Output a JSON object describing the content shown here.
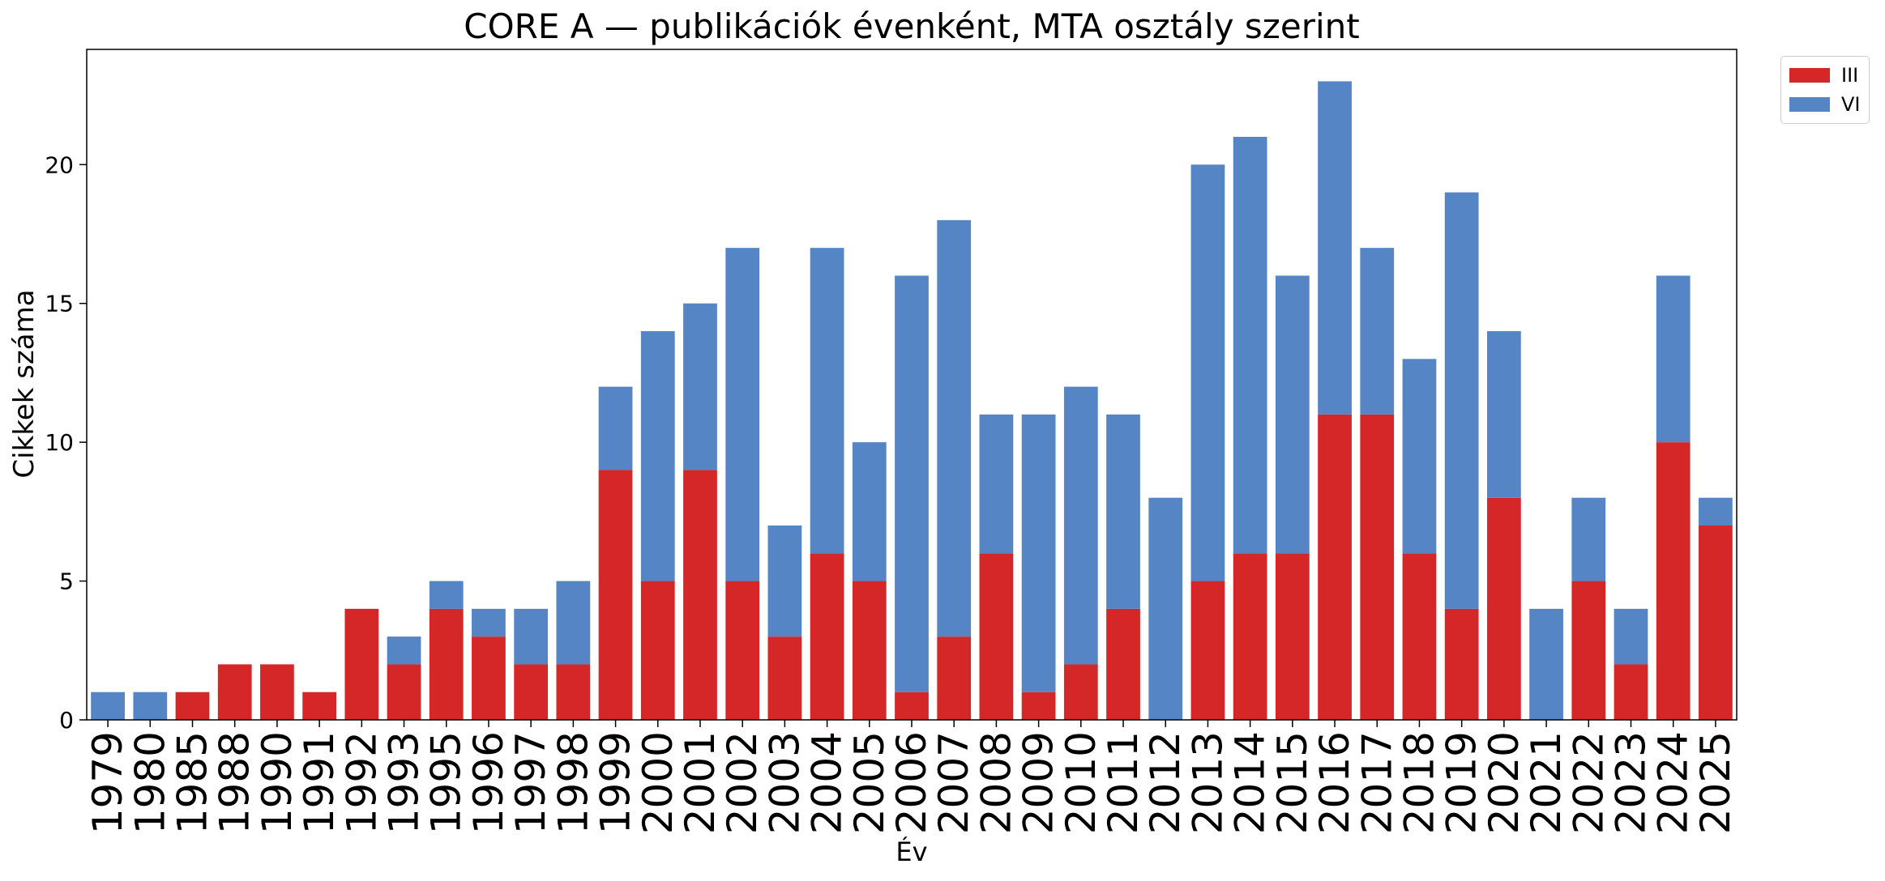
{
  "chart_data": {
    "type": "bar",
    "stacked": true,
    "title": "CORE A — publikációk évenként, MTA osztály szerint",
    "xlabel": "Év",
    "ylabel": "Cikkek száma",
    "categories": [
      "1979",
      "1980",
      "1985",
      "1988",
      "1990",
      "1991",
      "1992",
      "1993",
      "1995",
      "1996",
      "1997",
      "1998",
      "1999",
      "2000",
      "2001",
      "2002",
      "2003",
      "2004",
      "2005",
      "2006",
      "2007",
      "2008",
      "2009",
      "2010",
      "2011",
      "2012",
      "2013",
      "2014",
      "2015",
      "2016",
      "2017",
      "2018",
      "2019",
      "2020",
      "2021",
      "2022",
      "2023",
      "2024",
      "2025"
    ],
    "series": [
      {
        "name": "III",
        "color": "#d62728",
        "values": [
          0,
          0,
          1,
          2,
          2,
          1,
          4,
          2,
          4,
          3,
          2,
          2,
          9,
          5,
          9,
          5,
          3,
          6,
          5,
          1,
          3,
          6,
          1,
          2,
          4,
          0,
          5,
          6,
          6,
          11,
          11,
          6,
          4,
          8,
          0,
          5,
          2,
          10,
          7
        ]
      },
      {
        "name": "VI",
        "color": "#5585c4",
        "values": [
          1,
          1,
          0,
          0,
          0,
          0,
          0,
          1,
          1,
          1,
          2,
          3,
          3,
          9,
          6,
          12,
          4,
          11,
          5,
          15,
          15,
          5,
          10,
          10,
          7,
          8,
          15,
          15,
          10,
          12,
          6,
          7,
          15,
          6,
          4,
          3,
          2,
          6,
          1
        ]
      }
    ],
    "ylim": [
      0,
      24.15
    ],
    "yticks": [
      0,
      5,
      10,
      15,
      20
    ],
    "grid": false,
    "legend_position": "outside-top-right"
  }
}
